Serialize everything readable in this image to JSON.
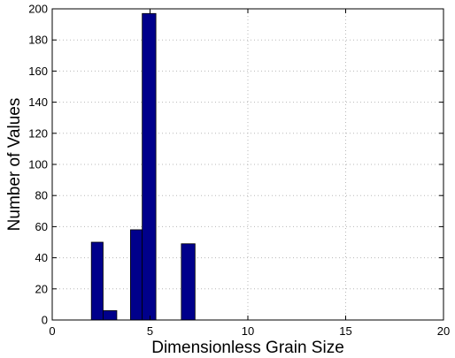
{
  "chart_data": {
    "type": "bar",
    "xlabel": "Dimensionless Grain Size",
    "ylabel": "Number of Values",
    "xlim": [
      0,
      20
    ],
    "ylim": [
      0,
      200
    ],
    "xticks": [
      "0",
      "5",
      "10",
      "15",
      "20"
    ],
    "yticks": [
      "0",
      "20",
      "40",
      "60",
      "80",
      "100",
      "120",
      "140",
      "160",
      "180",
      "200"
    ],
    "grid": true,
    "bar_color": "#00008b",
    "bins": [
      {
        "x0": 2.0,
        "x1": 2.6,
        "value": 50
      },
      {
        "x0": 2.6,
        "x1": 3.3,
        "value": 6
      },
      {
        "x0": 3.3,
        "x1": 4.0,
        "value": 0
      },
      {
        "x0": 4.0,
        "x1": 4.6,
        "value": 58
      },
      {
        "x0": 4.6,
        "x1": 5.3,
        "value": 197
      },
      {
        "x0": 5.3,
        "x1": 6.0,
        "value": 0
      },
      {
        "x0": 6.0,
        "x1": 6.6,
        "value": 0
      },
      {
        "x0": 6.6,
        "x1": 7.3,
        "value": 49
      }
    ]
  }
}
